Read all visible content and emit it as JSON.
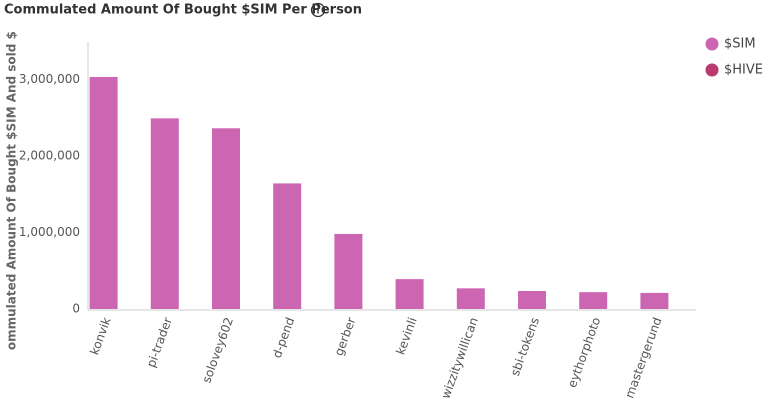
{
  "chart_data": {
    "type": "bar",
    "title": "Commulated Amount Of Bought $SIM Per Person",
    "y_label": "Commulated Amount Of Bought $SIM And sold $H",
    "categories": [
      "konvik",
      "pi-trader",
      "solovey602",
      "d-pend",
      "gerber",
      "kevinli",
      "wizzitywillican",
      "sbi-tokens",
      "eythorphoto",
      "mastergerund"
    ],
    "series": [
      {
        "name": "$SIM",
        "color": "#cc66b3",
        "values": [
          3030000,
          2490000,
          2360000,
          1640000,
          980000,
          390000,
          270000,
          235000,
          220000,
          210000
        ]
      },
      {
        "name": "$HIVE",
        "color": "#b83a6e",
        "values": [
          null,
          null,
          null,
          null,
          null,
          null,
          null,
          null,
          null,
          null
        ]
      }
    ],
    "ylim": [
      0,
      3500000
    ],
    "yticks": [
      0,
      {
        "value": 1000000,
        "label": "1,000,000"
      },
      {
        "value": 2000000,
        "label": "2,000,000"
      },
      {
        "value": 3000000,
        "label": "3,000,000"
      }
    ],
    "grid": false,
    "legend": "right"
  }
}
